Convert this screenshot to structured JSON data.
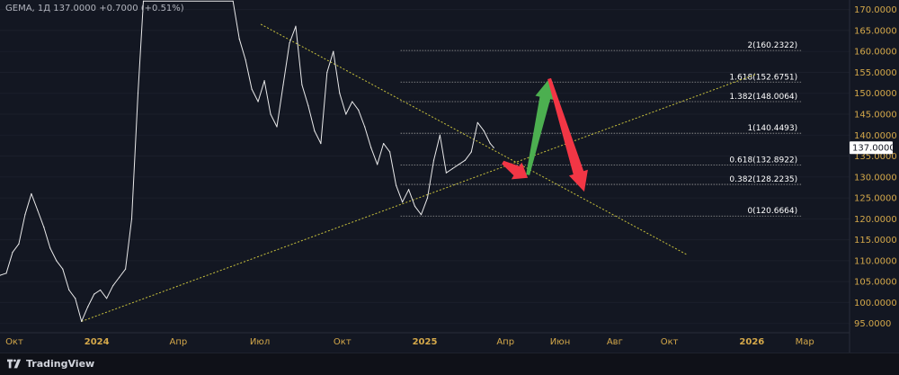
{
  "ticker": {
    "symbol": "GEMA",
    "interval": "1Д",
    "price": "137.0000",
    "change": "+0.7000",
    "change_pct": "(+0.51%)"
  },
  "footer": {
    "brand": "TradingView"
  },
  "colors": {
    "background": "#131722",
    "price_line": "#e9e9ea",
    "trendline": "#c9c23c",
    "fib_line": "#9b9b9b",
    "axis_text": "#d4a84a",
    "green_arrow": "#4caf50",
    "red_arrow": "#f23645"
  },
  "chart_data": {
    "type": "line",
    "title": "",
    "xlabel": "",
    "ylabel": "",
    "y_axis_side": "right",
    "ylim": [
      93,
      171
    ],
    "x_range": [
      "2023-09-15",
      "2026-04-20"
    ],
    "y_ticks": [
      "170.0000",
      "165.0000",
      "160.0000",
      "155.0000",
      "150.0000",
      "145.0000",
      "140.0000",
      "135.0000",
      "130.0000",
      "125.0000",
      "120.0000",
      "115.0000",
      "110.0000",
      "105.0000",
      "100.0000",
      "95.0000"
    ],
    "x_ticks": [
      {
        "label": "Окт",
        "date": "2023-10-01"
      },
      {
        "label": "2024",
        "date": "2024-01-01"
      },
      {
        "label": "Апр",
        "date": "2024-04-01"
      },
      {
        "label": "Июл",
        "date": "2024-07-01"
      },
      {
        "label": "Окт",
        "date": "2024-10-01"
      },
      {
        "label": "2025",
        "date": "2025-01-01"
      },
      {
        "label": "Апр",
        "date": "2025-04-01"
      },
      {
        "label": "Июн",
        "date": "2025-06-01"
      },
      {
        "label": "Авг",
        "date": "2025-08-01"
      },
      {
        "label": "Окт",
        "date": "2025-10-01"
      },
      {
        "label": "2026",
        "date": "2026-01-01"
      },
      {
        "label": "Мар",
        "date": "2026-03-01"
      }
    ],
    "last_price_label": "137.0000",
    "series": [
      {
        "points": [
          [
            "2023-09-15",
            106.5
          ],
          [
            "2023-09-22",
            107.0
          ],
          [
            "2023-09-29",
            112.0
          ],
          [
            "2023-10-06",
            114.0
          ],
          [
            "2023-10-13",
            121.0
          ],
          [
            "2023-10-20",
            126.0
          ],
          [
            "2023-10-27",
            122.0
          ],
          [
            "2023-11-03",
            118.0
          ],
          [
            "2023-11-10",
            113.0
          ],
          [
            "2023-11-17",
            110.0
          ],
          [
            "2023-11-24",
            108.0
          ],
          [
            "2023-12-01",
            103.0
          ],
          [
            "2023-12-08",
            101.0
          ],
          [
            "2023-12-15",
            95.5
          ],
          [
            "2023-12-22",
            99.0
          ],
          [
            "2023-12-29",
            102.0
          ],
          [
            "2024-01-05",
            103.0
          ],
          [
            "2024-01-12",
            101.0
          ],
          [
            "2024-01-19",
            104.0
          ],
          [
            "2024-01-26",
            106.0
          ],
          [
            "2024-02-02",
            108.0
          ],
          [
            "2024-02-09",
            120.0
          ],
          [
            "2024-02-16",
            150.0
          ],
          [
            "2024-02-22",
            172.0
          ],
          [
            "2024-06-01",
            172.0
          ],
          [
            "2024-06-08",
            163.0
          ],
          [
            "2024-06-15",
            158.0
          ],
          [
            "2024-06-22",
            151.0
          ],
          [
            "2024-06-29",
            148.0
          ],
          [
            "2024-07-06",
            153.0
          ],
          [
            "2024-07-13",
            145.0
          ],
          [
            "2024-07-20",
            142.0
          ],
          [
            "2024-07-27",
            152.0
          ],
          [
            "2024-08-03",
            162.0
          ],
          [
            "2024-08-10",
            166.0
          ],
          [
            "2024-08-17",
            152.0
          ],
          [
            "2024-08-24",
            147.0
          ],
          [
            "2024-08-31",
            141.0
          ],
          [
            "2024-09-07",
            138.0
          ],
          [
            "2024-09-14",
            155.0
          ],
          [
            "2024-09-21",
            160.0
          ],
          [
            "2024-09-28",
            150.0
          ],
          [
            "2024-10-05",
            145.0
          ],
          [
            "2024-10-12",
            148.0
          ],
          [
            "2024-10-19",
            146.0
          ],
          [
            "2024-10-26",
            142.0
          ],
          [
            "2024-11-02",
            137.0
          ],
          [
            "2024-11-09",
            133.0
          ],
          [
            "2024-11-16",
            138.0
          ],
          [
            "2024-11-23",
            136.0
          ],
          [
            "2024-11-30",
            128.0
          ],
          [
            "2024-12-07",
            124.0
          ],
          [
            "2024-12-14",
            127.0
          ],
          [
            "2024-12-21",
            123.0
          ],
          [
            "2024-12-28",
            121.0
          ],
          [
            "2025-01-04",
            125.0
          ],
          [
            "2025-01-11",
            134.0
          ],
          [
            "2025-01-18",
            140.0
          ],
          [
            "2025-01-25",
            131.0
          ],
          [
            "2025-02-01",
            132.0
          ],
          [
            "2025-02-08",
            133.0
          ],
          [
            "2025-02-15",
            134.0
          ],
          [
            "2025-02-22",
            136.0
          ],
          [
            "2025-03-01",
            143.0
          ],
          [
            "2025-03-08",
            141.0
          ],
          [
            "2025-03-15",
            138.0
          ],
          [
            "2025-03-19",
            137.0
          ]
        ]
      }
    ],
    "trendlines": [
      {
        "from": [
          "2023-12-15",
          95.5
        ],
        "to": [
          "2026-01-05",
          154.5
        ]
      },
      {
        "from": [
          "2024-07-02",
          166.5
        ],
        "to": [
          "2025-10-20",
          111.5
        ]
      }
    ],
    "fibonacci": {
      "start_date": "2024-12-05",
      "end_date": "2026-02-25",
      "levels": [
        {
          "ratio": "2",
          "value": "160.2322"
        },
        {
          "ratio": "1.618",
          "value": "152.6751"
        },
        {
          "ratio": "1.382",
          "value": "148.0064"
        },
        {
          "ratio": "1",
          "value": "140.4493"
        },
        {
          "ratio": "0.618",
          "value": "132.8922"
        },
        {
          "ratio": "0.382",
          "value": "128.2235"
        },
        {
          "ratio": "0",
          "value": "120.6664"
        }
      ]
    },
    "arrows": [
      {
        "color": "red_arrow",
        "from": [
          "2025-03-29",
          133.5
        ],
        "to": [
          "2025-04-26",
          129.8
        ]
      },
      {
        "color": "green_arrow",
        "from": [
          "2025-04-26",
          130.5
        ],
        "to": [
          "2025-05-20",
          153.5
        ]
      },
      {
        "color": "red_arrow",
        "from": [
          "2025-05-20",
          153.5
        ],
        "to": [
          "2025-06-28",
          126.5
        ]
      }
    ]
  }
}
